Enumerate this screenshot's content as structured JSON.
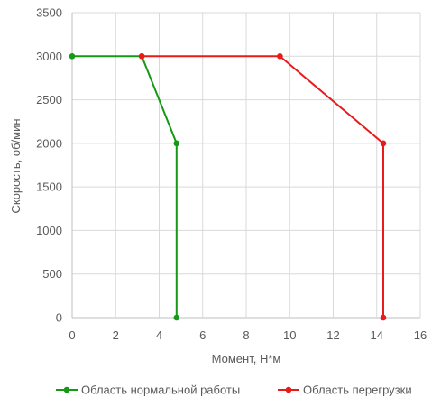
{
  "chart_data": {
    "type": "scatter",
    "title": "",
    "xlabel": "Момент, Н*м",
    "ylabel": "Скорость, об/мин",
    "xlim": [
      0,
      16
    ],
    "ylim": [
      0,
      3500
    ],
    "xticks": [
      0,
      2,
      4,
      6,
      8,
      10,
      12,
      14,
      16
    ],
    "yticks": [
      0,
      500,
      1000,
      1500,
      2000,
      2500,
      3000,
      3500
    ],
    "xtick_labels": [
      "0",
      "2",
      "4",
      "6",
      "8",
      "10",
      "12",
      "14",
      "16"
    ],
    "ytick_labels": [
      "0",
      "500",
      "1000",
      "1500",
      "2000",
      "2500",
      "3000",
      "3500"
    ],
    "grid": "vertical and horizontal",
    "legend_position": "bottom",
    "series": [
      {
        "name": "Область нормальной работы",
        "color": "#169916",
        "points": [
          {
            "x": 0,
            "y": 3000
          },
          {
            "x": 3.2,
            "y": 3000
          },
          {
            "x": 4.8,
            "y": 2000
          },
          {
            "x": 4.8,
            "y": 0
          }
        ]
      },
      {
        "name": "Область перегрузки",
        "color": "#e81a1a",
        "points": [
          {
            "x": 3.2,
            "y": 3000
          },
          {
            "x": 9.55,
            "y": 3000
          },
          {
            "x": 14.3,
            "y": 2000
          },
          {
            "x": 14.3,
            "y": 0
          }
        ]
      }
    ]
  }
}
